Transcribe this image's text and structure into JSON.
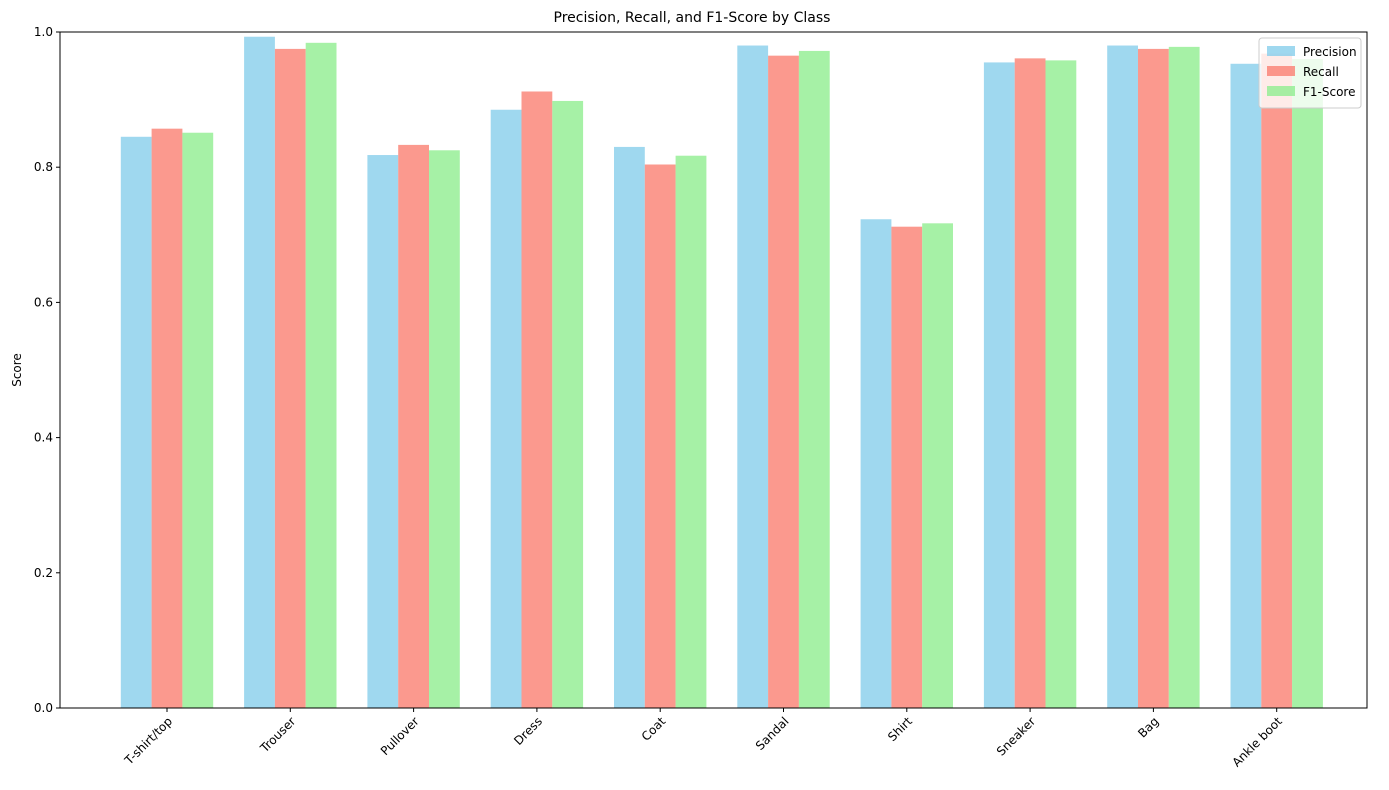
{
  "chart_data": {
    "type": "bar",
    "title": "Precision, Recall, and F1-Score by Class",
    "xlabel": "",
    "ylabel": "Score",
    "ylim": [
      0,
      1
    ],
    "yticks": [
      "0.0",
      "0.2",
      "0.4",
      "0.6",
      "0.8",
      "1.0"
    ],
    "ytick_values": [
      0,
      0.2,
      0.4,
      0.6,
      0.8,
      1.0
    ],
    "categories": [
      "T-shirt/top",
      "Trouser",
      "Pullover",
      "Dress",
      "Coat",
      "Sandal",
      "Shirt",
      "Sneaker",
      "Bag",
      "Ankle boot"
    ],
    "series": [
      {
        "name": "Precision",
        "color": "#87ceeb",
        "values": [
          0.845,
          0.993,
          0.818,
          0.885,
          0.83,
          0.98,
          0.723,
          0.955,
          0.98,
          0.953
        ]
      },
      {
        "name": "Recall",
        "color": "#fa8072",
        "values": [
          0.857,
          0.975,
          0.833,
          0.912,
          0.804,
          0.965,
          0.712,
          0.961,
          0.975,
          0.968
        ]
      },
      {
        "name": "F1-Score",
        "color": "#90ee90",
        "values": [
          0.851,
          0.984,
          0.825,
          0.898,
          0.817,
          0.972,
          0.717,
          0.958,
          0.978,
          0.96
        ]
      }
    ],
    "bar_opacity": 0.8,
    "grid": false,
    "legend_position": "top-right",
    "xtick_rotation": 45
  }
}
